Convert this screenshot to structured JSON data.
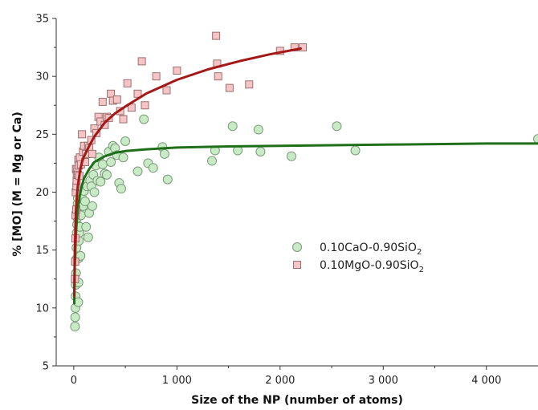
{
  "chart_data": {
    "type": "scatter",
    "xlabel": "Size of the NP (number of atoms)",
    "ylabel": "% [MO] (M = Mg or Ca)",
    "xlim": [
      -170,
      4500
    ],
    "ylim": [
      5,
      35
    ],
    "x_ticks": [
      0,
      1000,
      2000,
      3000,
      4000
    ],
    "x_tick_labels": [
      "0",
      "1 000",
      "2 000",
      "3 000",
      "4 000"
    ],
    "y_ticks": [
      5,
      10,
      15,
      20,
      25,
      30,
      35
    ],
    "y_tick_labels": [
      "5",
      "10",
      "15",
      "20",
      "25",
      "30",
      "35"
    ],
    "grid": false,
    "legend_position": "right-middle",
    "colors": {
      "cao_fill": "#c8ebc6",
      "cao_edge": "#7a9a78",
      "cao_fit": "#1f6f1a",
      "mgo_fill": "#f6c4c4",
      "mgo_edge": "#9a7070",
      "mgo_fit": "#a51818"
    },
    "series": [
      {
        "name": "0.10CaO-0.90SiO2",
        "legend_parts": [
          "0.10CaO-0.90SiO",
          "2"
        ],
        "marker": "circle",
        "x": [
          12,
          14,
          16,
          18,
          20,
          22,
          24,
          26,
          28,
          30,
          32,
          34,
          36,
          38,
          40,
          42,
          44,
          46,
          48,
          50,
          55,
          60,
          65,
          70,
          75,
          80,
          90,
          100,
          110,
          120,
          130,
          140,
          150,
          160,
          170,
          180,
          190,
          200,
          215,
          230,
          245,
          260,
          280,
          300,
          320,
          340,
          360,
          380,
          400,
          420,
          440,
          460,
          480,
          500,
          620,
          680,
          720,
          770,
          860,
          880,
          910,
          1340,
          1370,
          1540,
          1590,
          1790,
          1810,
          2110,
          2550,
          2730,
          4500
        ],
        "y": [
          8.4,
          9.2,
          10.0,
          11.0,
          12.0,
          13.0,
          14.2,
          15.2,
          16.0,
          16.5,
          17.2,
          17.8,
          18.5,
          19.0,
          19.5,
          20.0,
          10.5,
          12.2,
          14.3,
          15.8,
          16.5,
          17.0,
          14.5,
          18.0,
          18.8,
          19.5,
          18.8,
          20.1,
          19.2,
          17.0,
          20.5,
          16.1,
          18.2,
          21.0,
          20.5,
          18.8,
          21.5,
          20.0,
          22.3,
          21.0,
          23.0,
          20.9,
          22.4,
          21.6,
          21.5,
          23.5,
          22.6,
          24.0,
          23.8,
          23.2,
          20.8,
          20.3,
          23.0,
          24.4,
          21.8,
          26.3,
          22.5,
          22.1,
          23.9,
          23.3,
          21.1,
          22.7,
          23.6,
          25.7,
          23.6,
          25.4,
          23.5,
          23.1,
          25.7,
          23.6,
          24.6
        ]
      },
      {
        "name": "0.10MgO-0.90SiO2",
        "legend_parts": [
          "0.10MgO-0.90SiO",
          "2"
        ],
        "marker": "square",
        "x": [
          12,
          14,
          16,
          18,
          20,
          22,
          24,
          26,
          28,
          30,
          35,
          40,
          45,
          50,
          55,
          60,
          70,
          80,
          90,
          100,
          110,
          120,
          140,
          150,
          170,
          180,
          200,
          220,
          240,
          260,
          280,
          300,
          320,
          340,
          360,
          380,
          420,
          450,
          480,
          520,
          560,
          620,
          660,
          690,
          800,
          900,
          1000,
          1380,
          1390,
          1400,
          1510,
          1700,
          2000,
          2140,
          2220
        ],
        "y": [
          12.5,
          14.0,
          16.0,
          18.0,
          20.0,
          22.0,
          18.5,
          20.5,
          21.0,
          21.5,
          22.0,
          21.5,
          22.8,
          22.3,
          21.4,
          23.0,
          22.4,
          25.0,
          23.5,
          24.0,
          22.6,
          23.3,
          24.0,
          23.8,
          24.5,
          23.3,
          25.5,
          25.1,
          26.5,
          26.1,
          27.8,
          25.8,
          26.5,
          26.4,
          28.5,
          27.9,
          28.0,
          27.0,
          26.3,
          29.4,
          27.3,
          28.5,
          31.3,
          27.5,
          30.0,
          28.8,
          30.5,
          33.5,
          31.1,
          30.0,
          29.0,
          29.3,
          32.2,
          32.5,
          32.5
        ]
      }
    ],
    "fits": [
      {
        "series": "0.10CaO-0.90SiO2",
        "x": [
          5,
          10,
          20,
          30,
          40,
          60,
          80,
          100,
          150,
          200,
          300,
          400,
          500,
          700,
          1000,
          1500,
          2000,
          2500,
          3000,
          3500,
          4000,
          4500
        ],
        "y": [
          10.4,
          13.5,
          16.2,
          17.6,
          18.6,
          19.8,
          20.6,
          21.2,
          22.0,
          22.6,
          23.1,
          23.4,
          23.55,
          23.7,
          23.85,
          23.95,
          24.0,
          24.05,
          24.1,
          24.15,
          24.2,
          24.2
        ]
      },
      {
        "series": "0.10MgO-0.90SiO2",
        "x": [
          5,
          10,
          20,
          30,
          40,
          60,
          80,
          100,
          150,
          200,
          300,
          400,
          500,
          700,
          1000,
          1300,
          1600,
          1900,
          2200
        ],
        "y": [
          11.0,
          14.8,
          18.2,
          19.6,
          20.6,
          21.8,
          22.6,
          23.1,
          24.0,
          24.8,
          26.0,
          26.8,
          27.4,
          28.5,
          29.7,
          30.6,
          31.3,
          31.9,
          32.4
        ]
      }
    ]
  }
}
